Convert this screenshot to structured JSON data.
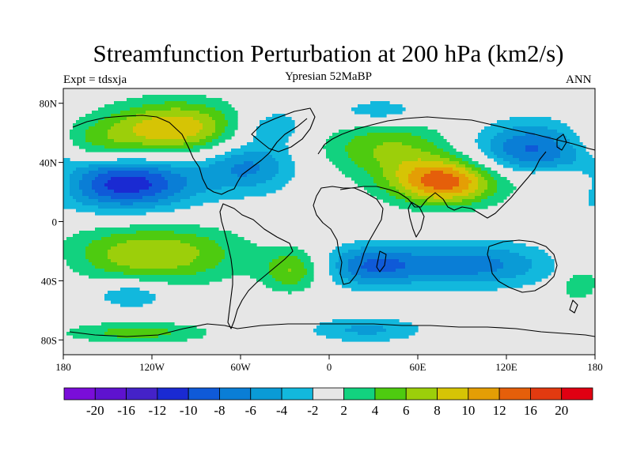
{
  "title": "Streamfunction Perturbation at 200 hPa (km2/s)",
  "subtitle": "Ypresian  52MaBP",
  "left_label": "Expt = tdsxja",
  "right_label": "ANN",
  "map": {
    "projection": "cylindrical-equidistant",
    "lon_range": [
      -180,
      180
    ],
    "lat_range": [
      -90,
      90
    ],
    "background_color": "#e6e6e6",
    "x_ticks": [
      {
        "value": -180,
        "label": "180"
      },
      {
        "value": -120,
        "label": "120W"
      },
      {
        "value": -60,
        "label": "60W"
      },
      {
        "value": 0,
        "label": "0"
      },
      {
        "value": 60,
        "label": "60E"
      },
      {
        "value": 120,
        "label": "120E"
      },
      {
        "value": 180,
        "label": "180"
      }
    ],
    "y_ticks": [
      {
        "value": 80,
        "label": "80N"
      },
      {
        "value": 40,
        "label": "40N"
      },
      {
        "value": 0,
        "label": "0"
      },
      {
        "value": -40,
        "label": "40S"
      },
      {
        "value": -80,
        "label": "80S"
      }
    ]
  },
  "chart_data": {
    "type": "heatmap",
    "title": "Streamfunction Perturbation at 200 hPa (km2/s)",
    "units": "km2/s",
    "levels": [
      -20,
      -16,
      -12,
      -10,
      -8,
      -6,
      -4,
      -2,
      2,
      4,
      6,
      8,
      10,
      12,
      16,
      20
    ],
    "colors": [
      "#7a0dd9",
      "#5e12cf",
      "#4422c8",
      "#1a2ad2",
      "#0f5ad8",
      "#0a7ed6",
      "#0a9bd6",
      "#12b8dd",
      "#e6e6e6",
      "#12d27f",
      "#4ecb10",
      "#9ccf0a",
      "#d6c405",
      "#e49e05",
      "#e55f0a",
      "#e23a10",
      "#e00012"
    ],
    "features": [
      {
        "lon": -104,
        "lat": 63,
        "peak": 10,
        "sigma_lon": 33,
        "sigma_lat": 13
      },
      {
        "lon": -162,
        "lat": 52,
        "peak": 4.5,
        "sigma_lon": 25,
        "sigma_lat": 11
      },
      {
        "lon": -137,
        "lat": 26,
        "peak": -11.5,
        "sigma_lon": 33,
        "sigma_lat": 13
      },
      {
        "lon": -55,
        "lat": 38,
        "peak": -6.5,
        "sigma_lon": 23,
        "sigma_lat": 13
      },
      {
        "lon": -40,
        "lat": 65,
        "peak": -4,
        "sigma_lon": 18,
        "sigma_lat": 9
      },
      {
        "lon": 40,
        "lat": 50,
        "peak": 6,
        "sigma_lon": 32,
        "sigma_lat": 14
      },
      {
        "lon": 78,
        "lat": 27,
        "peak": 13,
        "sigma_lon": 26,
        "sigma_lat": 11
      },
      {
        "lon": 35,
        "lat": 74,
        "peak": -4,
        "sigma_lon": 24,
        "sigma_lat": 7
      },
      {
        "lon": 138,
        "lat": 49,
        "peak": -8.5,
        "sigma_lon": 30,
        "sigma_lat": 13
      },
      {
        "lon": 160,
        "lat": 27,
        "peak": 4.5,
        "sigma_lon": 20,
        "sigma_lat": 7
      },
      {
        "lon": -120,
        "lat": -22,
        "peak": 8,
        "sigma_lon": 42,
        "sigma_lat": 14
      },
      {
        "lon": -134,
        "lat": -49,
        "peak": -4.5,
        "sigma_lon": 18,
        "sigma_lat": 7
      },
      {
        "lon": -25,
        "lat": -33,
        "peak": 6,
        "sigma_lon": 14,
        "sigma_lat": 10
      },
      {
        "lon": 28,
        "lat": -30,
        "peak": -6.5,
        "sigma_lon": 22,
        "sigma_lat": 10
      },
      {
        "lon": 95,
        "lat": -29,
        "peak": -7,
        "sigma_lon": 44,
        "sigma_lat": 11
      },
      {
        "lon": -130,
        "lat": -75,
        "peak": 5,
        "sigma_lon": 35,
        "sigma_lat": 5
      },
      {
        "lon": 25,
        "lat": -73,
        "peak": -4.5,
        "sigma_lon": 28,
        "sigma_lat": 6
      },
      {
        "lon": 168,
        "lat": -43,
        "peak": 4,
        "sigma_lon": 9,
        "sigma_lat": 7
      }
    ]
  },
  "colorbar": {
    "labels": [
      "-20",
      "-16",
      "-12",
      "-10",
      "-8",
      "-6",
      "-4",
      "-2",
      "2",
      "4",
      "6",
      "8",
      "10",
      "12",
      "16",
      "20"
    ]
  }
}
